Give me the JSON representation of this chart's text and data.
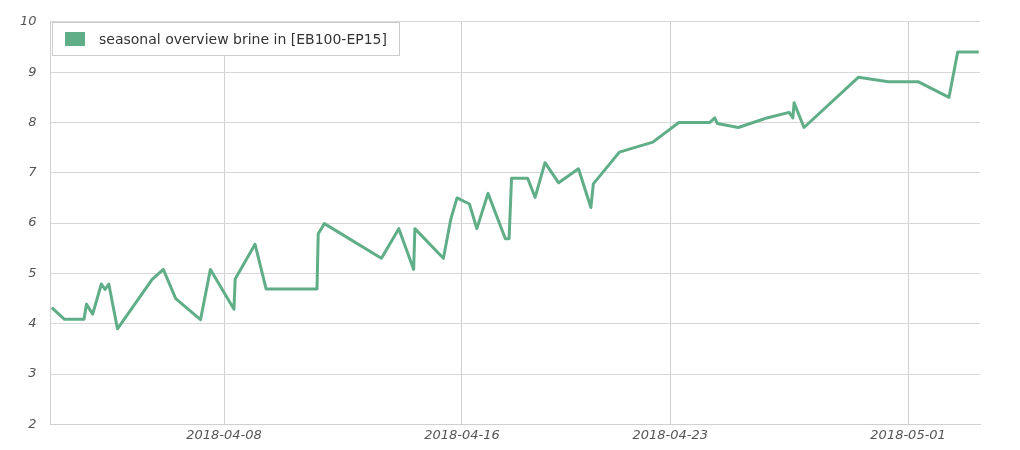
{
  "chart_data": {
    "type": "line",
    "x": [
      "2018-04-02T05:00",
      "2018-04-02T15:00",
      "2018-04-03T07:00",
      "2018-04-03T09:00",
      "2018-04-03T14:00",
      "2018-04-03T21:00",
      "2018-04-04T00:00",
      "2018-04-04T03:00",
      "2018-04-04T10:00",
      "2018-04-05T14:00",
      "2018-04-05T23:00",
      "2018-04-06T09:00",
      "2018-04-07T05:00",
      "2018-04-07T13:00",
      "2018-04-08T08:00",
      "2018-04-08T09:00",
      "2018-04-09T01:00",
      "2018-04-09T10:00",
      "2018-04-11T03:00",
      "2018-04-11T04:00",
      "2018-04-11T09:00",
      "2018-04-13T07:00",
      "2018-04-13T21:00",
      "2018-04-14T09:00",
      "2018-04-14T10:00",
      "2018-04-15T09:00",
      "2018-04-15T15:00",
      "2018-04-15T20:00",
      "2018-04-16T06:00",
      "2018-04-16T12:00",
      "2018-04-16T21:00",
      "2018-04-17T11:00",
      "2018-04-17T14:00",
      "2018-04-17T16:00",
      "2018-04-18T05:00",
      "2018-04-18T11:00",
      "2018-04-18T19:00",
      "2018-04-19T06:00",
      "2018-04-19T22:00",
      "2018-04-20T08:00",
      "2018-04-20T10:00",
      "2018-04-21T07:00",
      "2018-04-22T10:00",
      "2018-04-23T07:00",
      "2018-04-24T08:00",
      "2018-04-24T12:00",
      "2018-04-24T14:00",
      "2018-04-25T07:00",
      "2018-04-26T06:00",
      "2018-04-27T00:00",
      "2018-04-27T03:00",
      "2018-04-27T04:00",
      "2018-04-27T12:00",
      "2018-04-29T08:00",
      "2018-04-30T08:00",
      "2018-05-01T08:00",
      "2018-05-02T09:00",
      "2018-05-02T16:00",
      "2018-05-03T09:00"
    ],
    "series": [
      {
        "name": "seasonal overview brine in [EB100-EP15]",
        "color": "#5fae87",
        "values": [
          4.32,
          4.09,
          4.09,
          4.39,
          4.19,
          4.79,
          4.68,
          4.79,
          3.9,
          4.88,
          5.08,
          4.5,
          4.08,
          5.08,
          4.29,
          4.89,
          5.58,
          4.69,
          4.69,
          5.79,
          5.99,
          5.3,
          5.89,
          5.08,
          5.89,
          5.3,
          6.08,
          6.5,
          6.38,
          5.89,
          6.59,
          5.69,
          5.69,
          6.89,
          6.89,
          6.51,
          7.2,
          6.8,
          7.08,
          6.31,
          6.78,
          7.41,
          7.61,
          8.0,
          8.0,
          8.09,
          7.98,
          7.9,
          8.09,
          8.2,
          8.09,
          8.39,
          7.9,
          8.9,
          8.81,
          8.81,
          8.5,
          9.4,
          9.4
        ]
      }
    ],
    "xlim": [
      "2018-04-02T04:00",
      "2018-05-03T10:00"
    ],
    "xticks": [
      "2018-04-08",
      "2018-04-16",
      "2018-04-23",
      "2018-05-01"
    ],
    "ylim": [
      2,
      10
    ],
    "yticks": [
      2,
      3,
      4,
      5,
      6,
      7,
      8,
      9,
      10
    ],
    "grid": true,
    "legend": "top left",
    "marker": "none",
    "line_style": "solid"
  }
}
